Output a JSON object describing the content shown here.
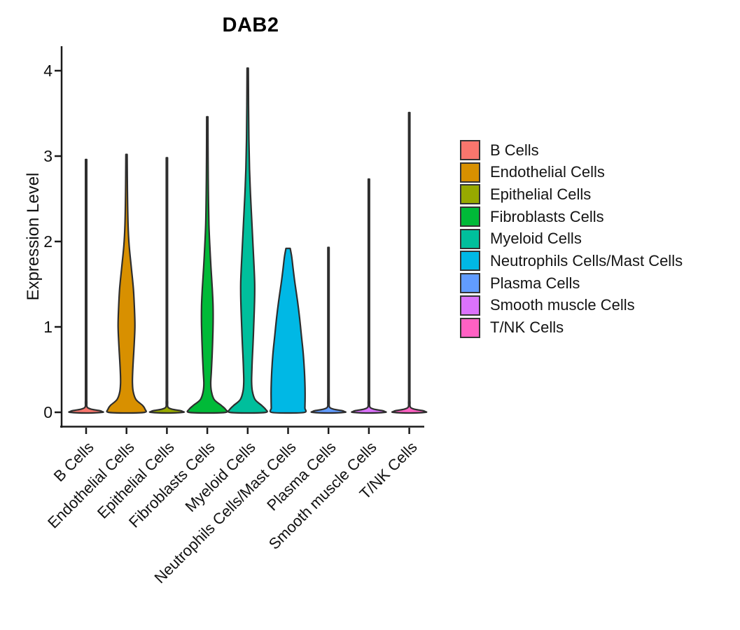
{
  "title": "DAB2",
  "y_axis": {
    "label": "Expression Level",
    "tick_labels": [
      "0",
      "1",
      "2",
      "3",
      "4"
    ]
  },
  "legend": {
    "items": [
      {
        "label": "B Cells",
        "color": "#F8766D"
      },
      {
        "label": "Endothelial Cells",
        "color": "#D89000"
      },
      {
        "label": "Epithelial Cells",
        "color": "#97A900"
      },
      {
        "label": "Fibroblasts Cells",
        "color": "#00BA38"
      },
      {
        "label": "Myeloid Cells",
        "color": "#00BF9C"
      },
      {
        "label": "Neutrophils Cells/Mast Cells",
        "color": "#00B8E5"
      },
      {
        "label": "Plasma Cells",
        "color": "#619CFF"
      },
      {
        "label": "Smooth muscle Cells",
        "color": "#DB72FB"
      },
      {
        "label": "T/NK Cells",
        "color": "#FF61C3"
      }
    ]
  },
  "chart_data": {
    "type": "violin",
    "title": "DAB2",
    "xlabel": "",
    "ylabel": "Expression Level",
    "ylim": [
      0,
      4.1
    ],
    "y_ticks": [
      0,
      1,
      2,
      3,
      4
    ],
    "grid": false,
    "legend_position": "right",
    "categories": [
      "B Cells",
      "Endothelial Cells",
      "Epithelial Cells",
      "Fibroblasts Cells",
      "Myeloid Cells",
      "Neutrophils Cells/Mast Cells",
      "Plasma Cells",
      "Smooth muscle Cells",
      "T/NK Cells"
    ],
    "profile_units": "pairs of [expression_level, relative_half_width]; bulk of cells at 0",
    "series": [
      {
        "name": "B Cells",
        "color": "#F8766D",
        "max_expression": 2.96,
        "profile": [
          [
            2.96,
            0.9
          ],
          [
            1.6,
            0.9
          ],
          [
            0.3,
            0.9
          ],
          [
            0.12,
            1.0
          ],
          [
            0.06,
            1.6
          ],
          [
            0.035,
            8
          ],
          [
            0.02,
            19
          ],
          [
            0.01,
            22.5
          ],
          [
            0,
            23
          ]
        ]
      },
      {
        "name": "Endothelial Cells",
        "color": "#D89000",
        "max_expression": 3.02,
        "profile": [
          [
            3.02,
            0.9
          ],
          [
            2.6,
            1.3
          ],
          [
            2.2,
            2.2
          ],
          [
            1.95,
            3.8
          ],
          [
            1.7,
            6.8
          ],
          [
            1.45,
            9.8
          ],
          [
            1.2,
            11.4
          ],
          [
            1.0,
            12
          ],
          [
            0.8,
            11
          ],
          [
            0.6,
            9.6
          ],
          [
            0.45,
            8.7
          ],
          [
            0.34,
            8.5
          ],
          [
            0.24,
            9.6
          ],
          [
            0.15,
            13.5
          ],
          [
            0.08,
            23
          ],
          [
            0.035,
            26.5
          ],
          [
            0,
            26
          ]
        ]
      },
      {
        "name": "Epithelial Cells",
        "color": "#97A900",
        "max_expression": 2.98,
        "profile": [
          [
            2.98,
            0.9
          ],
          [
            1.6,
            0.9
          ],
          [
            0.3,
            0.9
          ],
          [
            0.12,
            1.0
          ],
          [
            0.06,
            1.6
          ],
          [
            0.035,
            8
          ],
          [
            0.02,
            19
          ],
          [
            0.01,
            22.5
          ],
          [
            0,
            23
          ]
        ]
      },
      {
        "name": "Fibroblasts Cells",
        "color": "#00BA38",
        "max_expression": 3.46,
        "profile": [
          [
            3.46,
            0.9
          ],
          [
            3.0,
            1.1
          ],
          [
            2.6,
            1.5
          ],
          [
            2.2,
            2.3
          ],
          [
            1.95,
            3.6
          ],
          [
            1.7,
            5.2
          ],
          [
            1.45,
            7.1
          ],
          [
            1.25,
            8.2
          ],
          [
            1.05,
            8.3
          ],
          [
            0.85,
            7.7
          ],
          [
            0.65,
            6.8
          ],
          [
            0.48,
            5.8
          ],
          [
            0.34,
            4.9
          ],
          [
            0.24,
            6
          ],
          [
            0.15,
            9.8
          ],
          [
            0.08,
            20
          ],
          [
            0.035,
            26
          ],
          [
            0,
            26.5
          ]
        ]
      },
      {
        "name": "Myeloid Cells",
        "color": "#00BF9C",
        "max_expression": 4.03,
        "profile": [
          [
            4.03,
            0.9
          ],
          [
            3.6,
            1.2
          ],
          [
            3.2,
            1.7
          ],
          [
            2.85,
            2.6
          ],
          [
            2.55,
            4
          ],
          [
            2.25,
            5.8
          ],
          [
            1.95,
            7.6
          ],
          [
            1.7,
            9.1
          ],
          [
            1.5,
            10
          ],
          [
            1.3,
            9.8
          ],
          [
            1.1,
            9
          ],
          [
            0.9,
            8.1
          ],
          [
            0.7,
            7
          ],
          [
            0.5,
            6
          ],
          [
            0.36,
            5.6
          ],
          [
            0.25,
            6.6
          ],
          [
            0.15,
            10.5
          ],
          [
            0.08,
            20
          ],
          [
            0.035,
            25.5
          ],
          [
            0,
            26
          ]
        ]
      },
      {
        "name": "Neutrophils Cells/Mast Cells",
        "color": "#00B8E5",
        "max_expression": 1.92,
        "profile": [
          [
            1.92,
            3
          ],
          [
            1.82,
            5.2
          ],
          [
            1.68,
            7.2
          ],
          [
            1.5,
            10
          ],
          [
            1.3,
            13.5
          ],
          [
            1.1,
            16.5
          ],
          [
            0.9,
            19
          ],
          [
            0.7,
            21.5
          ],
          [
            0.5,
            23.2
          ],
          [
            0.35,
            24
          ],
          [
            0.22,
            24.3
          ],
          [
            0.12,
            24.2
          ],
          [
            0.05,
            24
          ],
          [
            0,
            23.8
          ]
        ]
      },
      {
        "name": "Plasma Cells",
        "color": "#619CFF",
        "max_expression": 1.93,
        "profile": [
          [
            1.93,
            0.9
          ],
          [
            1.0,
            0.9
          ],
          [
            0.3,
            0.9
          ],
          [
            0.12,
            1.0
          ],
          [
            0.06,
            1.6
          ],
          [
            0.035,
            8
          ],
          [
            0.02,
            19
          ],
          [
            0.01,
            22.5
          ],
          [
            0,
            23
          ]
        ]
      },
      {
        "name": "Smooth muscle Cells",
        "color": "#DB72FB",
        "max_expression": 2.73,
        "profile": [
          [
            2.73,
            0.9
          ],
          [
            1.5,
            0.9
          ],
          [
            0.3,
            0.9
          ],
          [
            0.12,
            1.0
          ],
          [
            0.06,
            1.6
          ],
          [
            0.035,
            8
          ],
          [
            0.02,
            19
          ],
          [
            0.01,
            22.5
          ],
          [
            0,
            23
          ]
        ]
      },
      {
        "name": "T/NK Cells",
        "color": "#FF61C3",
        "max_expression": 3.51,
        "profile": [
          [
            3.51,
            0.9
          ],
          [
            1.9,
            0.9
          ],
          [
            0.3,
            0.9
          ],
          [
            0.12,
            1.0
          ],
          [
            0.06,
            1.6
          ],
          [
            0.035,
            8
          ],
          [
            0.02,
            19
          ],
          [
            0.01,
            22.5
          ],
          [
            0,
            23
          ]
        ]
      }
    ]
  }
}
